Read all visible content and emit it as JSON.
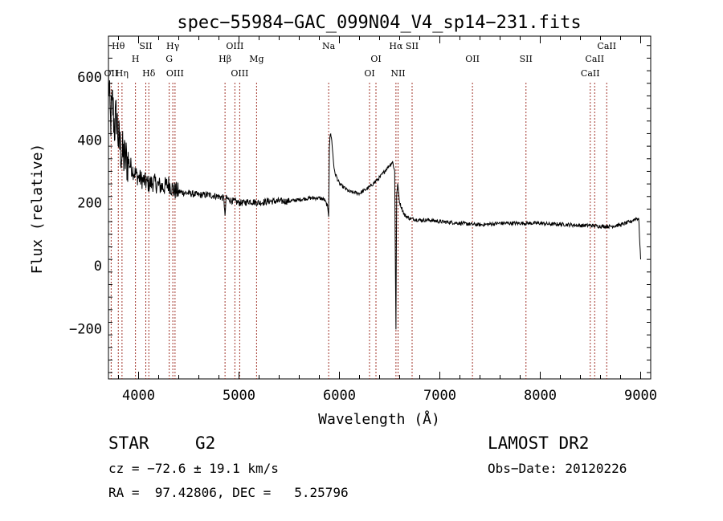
{
  "chart_data": {
    "type": "line",
    "title": "spec−55984−GAC_099N04_V4_sp14−231.fits",
    "xlabel": "Wavelength (Å)",
    "ylabel": "Flux (relative)",
    "xlim": [
      3700,
      9100
    ],
    "ylim": [
      -360,
      730
    ],
    "xticks": [
      4000,
      5000,
      6000,
      7000,
      8000,
      9000
    ],
    "yticks": [
      -200,
      0,
      200,
      400,
      600
    ],
    "ytick_labels": [
      "−200",
      "0",
      "200",
      "400",
      "600"
    ],
    "grid": false,
    "line_color": "#000000",
    "marker_color": "#a0342a",
    "series": [
      {
        "x": [
          3700,
          3720,
          3740,
          3760,
          3780,
          3800,
          3830,
          3860,
          3900,
          3950,
          4000,
          4050,
          4100,
          4150,
          4200,
          4250,
          4300,
          4350,
          4400,
          4500,
          4600,
          4700,
          4800,
          4850,
          4861,
          4870,
          4900,
          4950,
          5000,
          5050,
          5100,
          5200,
          5300,
          5400,
          5500,
          5600,
          5700,
          5800,
          5850,
          5880,
          5893,
          5900,
          5910,
          5920,
          5950,
          6000,
          6100,
          6200,
          6300,
          6400,
          6450,
          6500,
          6530,
          6550,
          6563,
          6570,
          6580,
          6600,
          6650,
          6700,
          6800,
          6900,
          7000,
          7100,
          7200,
          7300,
          7400,
          7500,
          7600,
          7700,
          7800,
          7900,
          8000,
          8100,
          8200,
          8300,
          8400,
          8500,
          8600,
          8700,
          8800,
          8900,
          8950,
          8980,
          9000
        ],
        "y": [
          600,
          450,
          520,
          440,
          480,
          400,
          360,
          340,
          330,
          300,
          280,
          270,
          260,
          265,
          255,
          250,
          260,
          240,
          235,
          230,
          225,
          225,
          220,
          215,
          150,
          215,
          210,
          205,
          200,
          200,
          205,
          200,
          205,
          205,
          205,
          210,
          215,
          215,
          210,
          190,
          160,
          380,
          420,
          410,
          300,
          260,
          235,
          230,
          250,
          280,
          300,
          320,
          330,
          300,
          -200,
          220,
          260,
          200,
          160,
          150,
          145,
          145,
          140,
          138,
          135,
          132,
          130,
          132,
          135,
          135,
          135,
          135,
          135,
          132,
          132,
          130,
          128,
          128,
          125,
          125,
          130,
          140,
          150,
          150,
          20
        ]
      }
    ],
    "lines": [
      {
        "name": "Hθ",
        "w": 3798,
        "row": 0
      },
      {
        "name": "OII",
        "w": 3727,
        "row": 3
      },
      {
        "name": "Hη",
        "w": 3835,
        "row": 3
      },
      {
        "name": "H",
        "w": 3969,
        "row": 1
      },
      {
        "name": "SII",
        "w": 4072,
        "row": 0
      },
      {
        "name": "Hδ",
        "w": 4102,
        "row": 3
      },
      {
        "name": "Hγ",
        "w": 4341,
        "row": 0
      },
      {
        "name": "G",
        "w": 4305,
        "row": 1
      },
      {
        "name": "OIII",
        "w": 4363,
        "row": 3
      },
      {
        "name": "OIII",
        "w": 4959,
        "row": 0
      },
      {
        "name": "Hβ",
        "w": 4861,
        "row": 1
      },
      {
        "name": "OIII",
        "w": 5007,
        "row": 3
      },
      {
        "name": "Mg",
        "w": 5175,
        "row": 1
      },
      {
        "name": "Na",
        "w": 5893,
        "row": 0
      },
      {
        "name": "OI",
        "w": 6364,
        "row": 1
      },
      {
        "name": "OI",
        "w": 6300,
        "row": 3
      },
      {
        "name": "Hα",
        "w": 6563,
        "row": 0
      },
      {
        "name": "SII",
        "w": 6724,
        "row": 0
      },
      {
        "name": "NII",
        "w": 6584,
        "row": 3
      },
      {
        "name": "OII",
        "w": 7325,
        "row": 1
      },
      {
        "name": "SII",
        "w": 7858,
        "row": 1
      },
      {
        "name": "CaII",
        "w": 8662,
        "row": 0
      },
      {
        "name": "CaII",
        "w": 8542,
        "row": 1
      },
      {
        "name": "CaII",
        "w": 8498,
        "row": 3
      }
    ]
  },
  "info": {
    "type": "STAR",
    "subclass": "G2",
    "survey": "LAMOST DR2",
    "cz": "cz = −72.6 ± 19.1 km/s",
    "obs_date": "Obs−Date: 20120226",
    "radec": "RA =  97.42806, DEC =   5.25796"
  }
}
